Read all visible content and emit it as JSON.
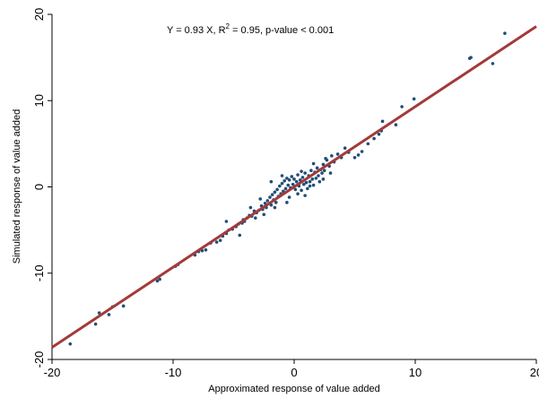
{
  "chart_data": {
    "type": "scatter",
    "title": "",
    "annotation": {
      "prefix": "Y = 0.93 X, R",
      "sup": "2",
      "suffix": " = 0.95, p-value < 0.001"
    },
    "xlabel": "Approximated response of value added",
    "ylabel": "Simulated response of value added",
    "xlim": [
      -20,
      20
    ],
    "ylim": [
      -20,
      20
    ],
    "xticks": [
      -20,
      -10,
      0,
      10,
      20
    ],
    "yticks": [
      -20,
      -10,
      0,
      10,
      20
    ],
    "xtick_labels": [
      "-20",
      "-10",
      "0",
      "10",
      "20"
    ],
    "ytick_labels": [
      "-20",
      "-10",
      "0",
      "10",
      "20"
    ],
    "grid": false,
    "colors": {
      "points": "#1f4e79",
      "fit_line": "#a33a3a"
    },
    "fit_line": {
      "slope": 0.93,
      "x_range": [
        -20,
        20
      ]
    },
    "series": [
      {
        "points": [
          [
            -18.5,
            -18.2
          ],
          [
            -16.4,
            -15.9
          ],
          [
            -16.1,
            -14.6
          ],
          [
            -15.3,
            -14.8
          ],
          [
            -15.0,
            -13.9
          ],
          [
            -14.1,
            -13.8
          ],
          [
            -11.3,
            -10.9
          ],
          [
            -11.1,
            -10.7
          ],
          [
            -9.8,
            -9.2
          ],
          [
            -9.6,
            -9.0
          ],
          [
            -8.2,
            -7.9
          ],
          [
            -7.9,
            -7.5
          ],
          [
            -7.6,
            -7.4
          ],
          [
            -7.3,
            -7.3
          ],
          [
            -6.9,
            -6.5
          ],
          [
            -6.4,
            -6.4
          ],
          [
            -6.1,
            -6.2
          ],
          [
            -5.9,
            -5.7
          ],
          [
            -5.6,
            -5.4
          ],
          [
            -5.4,
            -5.0
          ],
          [
            -5.1,
            -4.9
          ],
          [
            -4.8,
            -4.6
          ],
          [
            -4.6,
            -4.3
          ],
          [
            -4.3,
            -4.2
          ],
          [
            -4.1,
            -4.0
          ],
          [
            -3.9,
            -3.6
          ],
          [
            -3.7,
            -3.3
          ],
          [
            -3.5,
            -3.4
          ],
          [
            -3.3,
            -2.8
          ],
          [
            -3.1,
            -3.0
          ],
          [
            -2.9,
            -2.7
          ],
          [
            -2.7,
            -2.2
          ],
          [
            -2.6,
            -2.6
          ],
          [
            -2.4,
            -1.9
          ],
          [
            -2.3,
            -2.4
          ],
          [
            -2.2,
            -1.6
          ],
          [
            -2.0,
            -1.2
          ],
          [
            -1.9,
            -2.1
          ],
          [
            -1.8,
            -0.9
          ],
          [
            -1.7,
            -1.5
          ],
          [
            -1.6,
            -0.6
          ],
          [
            -1.5,
            -1.8
          ],
          [
            -1.4,
            -0.3
          ],
          [
            -1.3,
            -1.1
          ],
          [
            -1.2,
            0.1
          ],
          [
            -1.1,
            -0.8
          ],
          [
            -1.0,
            0.4
          ],
          [
            -0.9,
            -0.5
          ],
          [
            -0.8,
            0.7
          ],
          [
            -0.7,
            -0.2
          ],
          [
            -0.6,
            1.0
          ],
          [
            -0.5,
            0.2
          ],
          [
            -0.4,
            0.8
          ],
          [
            -0.3,
            -0.1
          ],
          [
            -0.2,
            1.2
          ],
          [
            -0.1,
            0.3
          ],
          [
            0.0,
            0.9
          ],
          [
            0.1,
            -0.3
          ],
          [
            0.2,
            0.6
          ],
          [
            0.3,
            1.4
          ],
          [
            0.4,
            0.1
          ],
          [
            0.5,
            0.8
          ],
          [
            0.6,
            -0.4
          ],
          [
            0.7,
            1.1
          ],
          [
            0.8,
            0.3
          ],
          [
            0.9,
            1.6
          ],
          [
            1.0,
            0.5
          ],
          [
            1.1,
            -0.2
          ],
          [
            1.2,
            1.3
          ],
          [
            1.3,
            0.6
          ],
          [
            1.4,
            1.9
          ],
          [
            1.5,
            0.9
          ],
          [
            1.6,
            0.2
          ],
          [
            1.7,
            1.7
          ],
          [
            1.8,
            1.0
          ],
          [
            1.9,
            2.2
          ],
          [
            2.0,
            1.3
          ],
          [
            2.1,
            0.6
          ],
          [
            2.2,
            2.0
          ],
          [
            2.3,
            1.6
          ],
          [
            2.4,
            2.6
          ],
          [
            2.5,
            1.9
          ],
          [
            2.7,
            3.1
          ],
          [
            2.9,
            2.4
          ],
          [
            3.1,
            3.6
          ],
          [
            3.3,
            2.9
          ],
          [
            3.6,
            3.8
          ],
          [
            3.9,
            3.4
          ],
          [
            4.2,
            4.5
          ],
          [
            4.5,
            4.0
          ],
          [
            5.0,
            3.4
          ],
          [
            5.3,
            3.7
          ],
          [
            5.6,
            4.1
          ],
          [
            6.1,
            5.0
          ],
          [
            6.6,
            5.6
          ],
          [
            7.0,
            6.1
          ],
          [
            7.2,
            6.5
          ],
          [
            7.3,
            7.6
          ],
          [
            8.4,
            7.2
          ],
          [
            8.9,
            9.3
          ],
          [
            9.9,
            10.2
          ],
          [
            14.5,
            14.9
          ],
          [
            14.6,
            15.0
          ],
          [
            16.4,
            14.3
          ],
          [
            17.4,
            17.8
          ],
          [
            -4.2,
            -3.8
          ],
          [
            -3.2,
            -3.6
          ],
          [
            -2.5,
            -3.2
          ],
          [
            -1.6,
            -2.4
          ],
          [
            -0.4,
            -1.2
          ],
          [
            0.3,
            -0.8
          ],
          [
            1.3,
            0.1
          ],
          [
            2.4,
            0.9
          ],
          [
            3.0,
            1.6
          ],
          [
            -2.8,
            -1.4
          ],
          [
            -1.9,
            0.6
          ],
          [
            -1.0,
            1.3
          ],
          [
            0.6,
            1.8
          ],
          [
            1.6,
            2.7
          ],
          [
            2.6,
            3.3
          ],
          [
            -5.6,
            -4.0
          ],
          [
            -4.5,
            -5.6
          ],
          [
            -3.6,
            -2.4
          ],
          [
            -0.6,
            -1.8
          ],
          [
            0.9,
            -1.0
          ]
        ]
      }
    ]
  }
}
